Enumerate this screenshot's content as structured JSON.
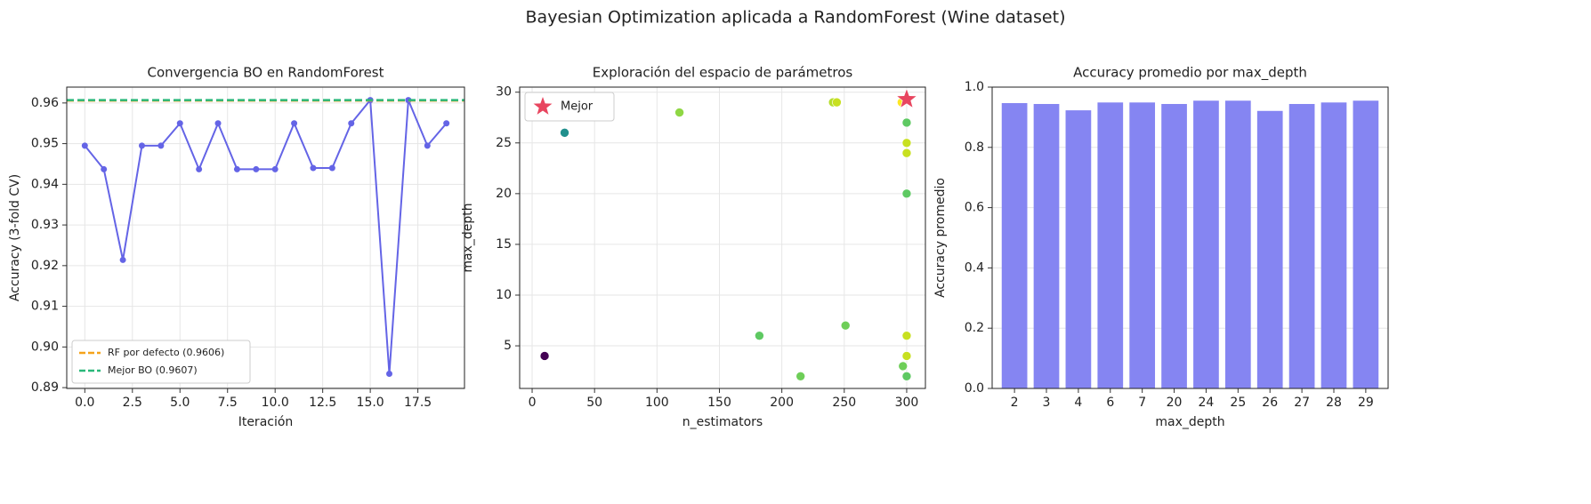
{
  "title": "Bayesian Optimization aplicada a RandomForest (Wine dataset)",
  "chart_data": [
    {
      "type": "line",
      "title": "Convergencia BO en RandomForest",
      "xlabel": "Iteración",
      "ylabel": "Accuracy (3-fold CV)",
      "x": [
        0,
        1,
        2,
        3,
        4,
        5,
        6,
        7,
        8,
        9,
        10,
        11,
        12,
        13,
        14,
        15,
        16,
        17,
        18,
        19
      ],
      "series": [
        {
          "color": "#6464e6",
          "values": [
            0.9495,
            0.9437,
            0.9214,
            0.9495,
            0.9495,
            0.955,
            0.9437,
            0.955,
            0.9437,
            0.9437,
            0.9437,
            0.955,
            0.944,
            0.944,
            0.955,
            0.9607,
            0.8934,
            0.9607,
            0.9495,
            0.955
          ]
        }
      ],
      "hlines": [
        {
          "name": "RF por defecto (0.9606)",
          "value": 0.9606,
          "color": "#f5a31a"
        },
        {
          "name": "Mejor BO (0.9607)",
          "value": 0.9607,
          "color": "#2ab87a"
        }
      ],
      "xlim": [
        -0.95,
        19.95
      ],
      "ylim": [
        0.8898,
        0.9639
      ],
      "xticks": [
        {
          "value": 0,
          "label": "0.0"
        },
        2.5,
        {
          "value": 5,
          "label": "5.0"
        },
        7.5,
        {
          "value": 10,
          "label": "10.0"
        },
        12.5,
        {
          "value": 15,
          "label": "15.0"
        },
        17.5
      ],
      "yticks": [
        0.89,
        {
          "value": 0.9,
          "label": "0.90"
        },
        0.91,
        0.92,
        0.93,
        0.94,
        0.95,
        0.96
      ],
      "grid": true,
      "legend": "lower left"
    },
    {
      "type": "scatter",
      "title": "Exploración del espacio de parámetros",
      "xlabel": "n_estimators",
      "ylabel": "max_depth",
      "series": [
        {
          "x": [
            10,
            26,
            118,
            182,
            215,
            241,
            244,
            251,
            296,
            297,
            300,
            300,
            300,
            300,
            300,
            300,
            300
          ],
          "values": [
            4,
            26,
            28,
            6,
            2,
            29,
            29,
            7,
            29,
            3,
            27,
            25,
            24,
            20,
            6,
            4,
            2
          ],
          "colors": [
            "#440154",
            "#21908d",
            "#8fd744",
            "#5ec962",
            "#6ece58",
            "#b5de2b",
            "#c8e020",
            "#6ece58",
            "#fde725",
            "#6ece58",
            "#5ec962",
            "#c8e020",
            "#c8e020",
            "#5ec962",
            "#c8e020",
            "#c8e020",
            "#5ec962"
          ]
        },
        {
          "name": "Mejor",
          "marker": "star",
          "color": "#e8455f",
          "x": [
            300
          ],
          "values": [
            29.3
          ]
        }
      ],
      "xlim": [
        -10,
        315
      ],
      "ylim": [
        0.8,
        30.5
      ],
      "xticks": [
        0,
        50,
        100,
        150,
        200,
        250,
        300
      ],
      "yticks": [
        5,
        10,
        15,
        20,
        25,
        30
      ],
      "grid": true,
      "legend": "upper left"
    },
    {
      "type": "bar",
      "title": "Accuracy promedio por max_depth",
      "xlabel": "max_depth",
      "ylabel": "Accuracy promedio",
      "categories": [
        "2",
        "3",
        "4",
        "6",
        "7",
        "20",
        "24",
        "25",
        "26",
        "27",
        "28",
        "29"
      ],
      "values": [
        0.947,
        0.944,
        0.923,
        0.949,
        0.949,
        0.944,
        0.955,
        0.955,
        0.921,
        0.944,
        0.949,
        0.955
      ],
      "color": "#8585f2",
      "ylim": [
        0,
        1.0
      ],
      "yticks": [
        {
          "value": 0,
          "label": "0.0"
        },
        0.2,
        0.4,
        0.6,
        0.8,
        {
          "value": 1,
          "label": "1.0"
        }
      ],
      "grid": true
    }
  ]
}
